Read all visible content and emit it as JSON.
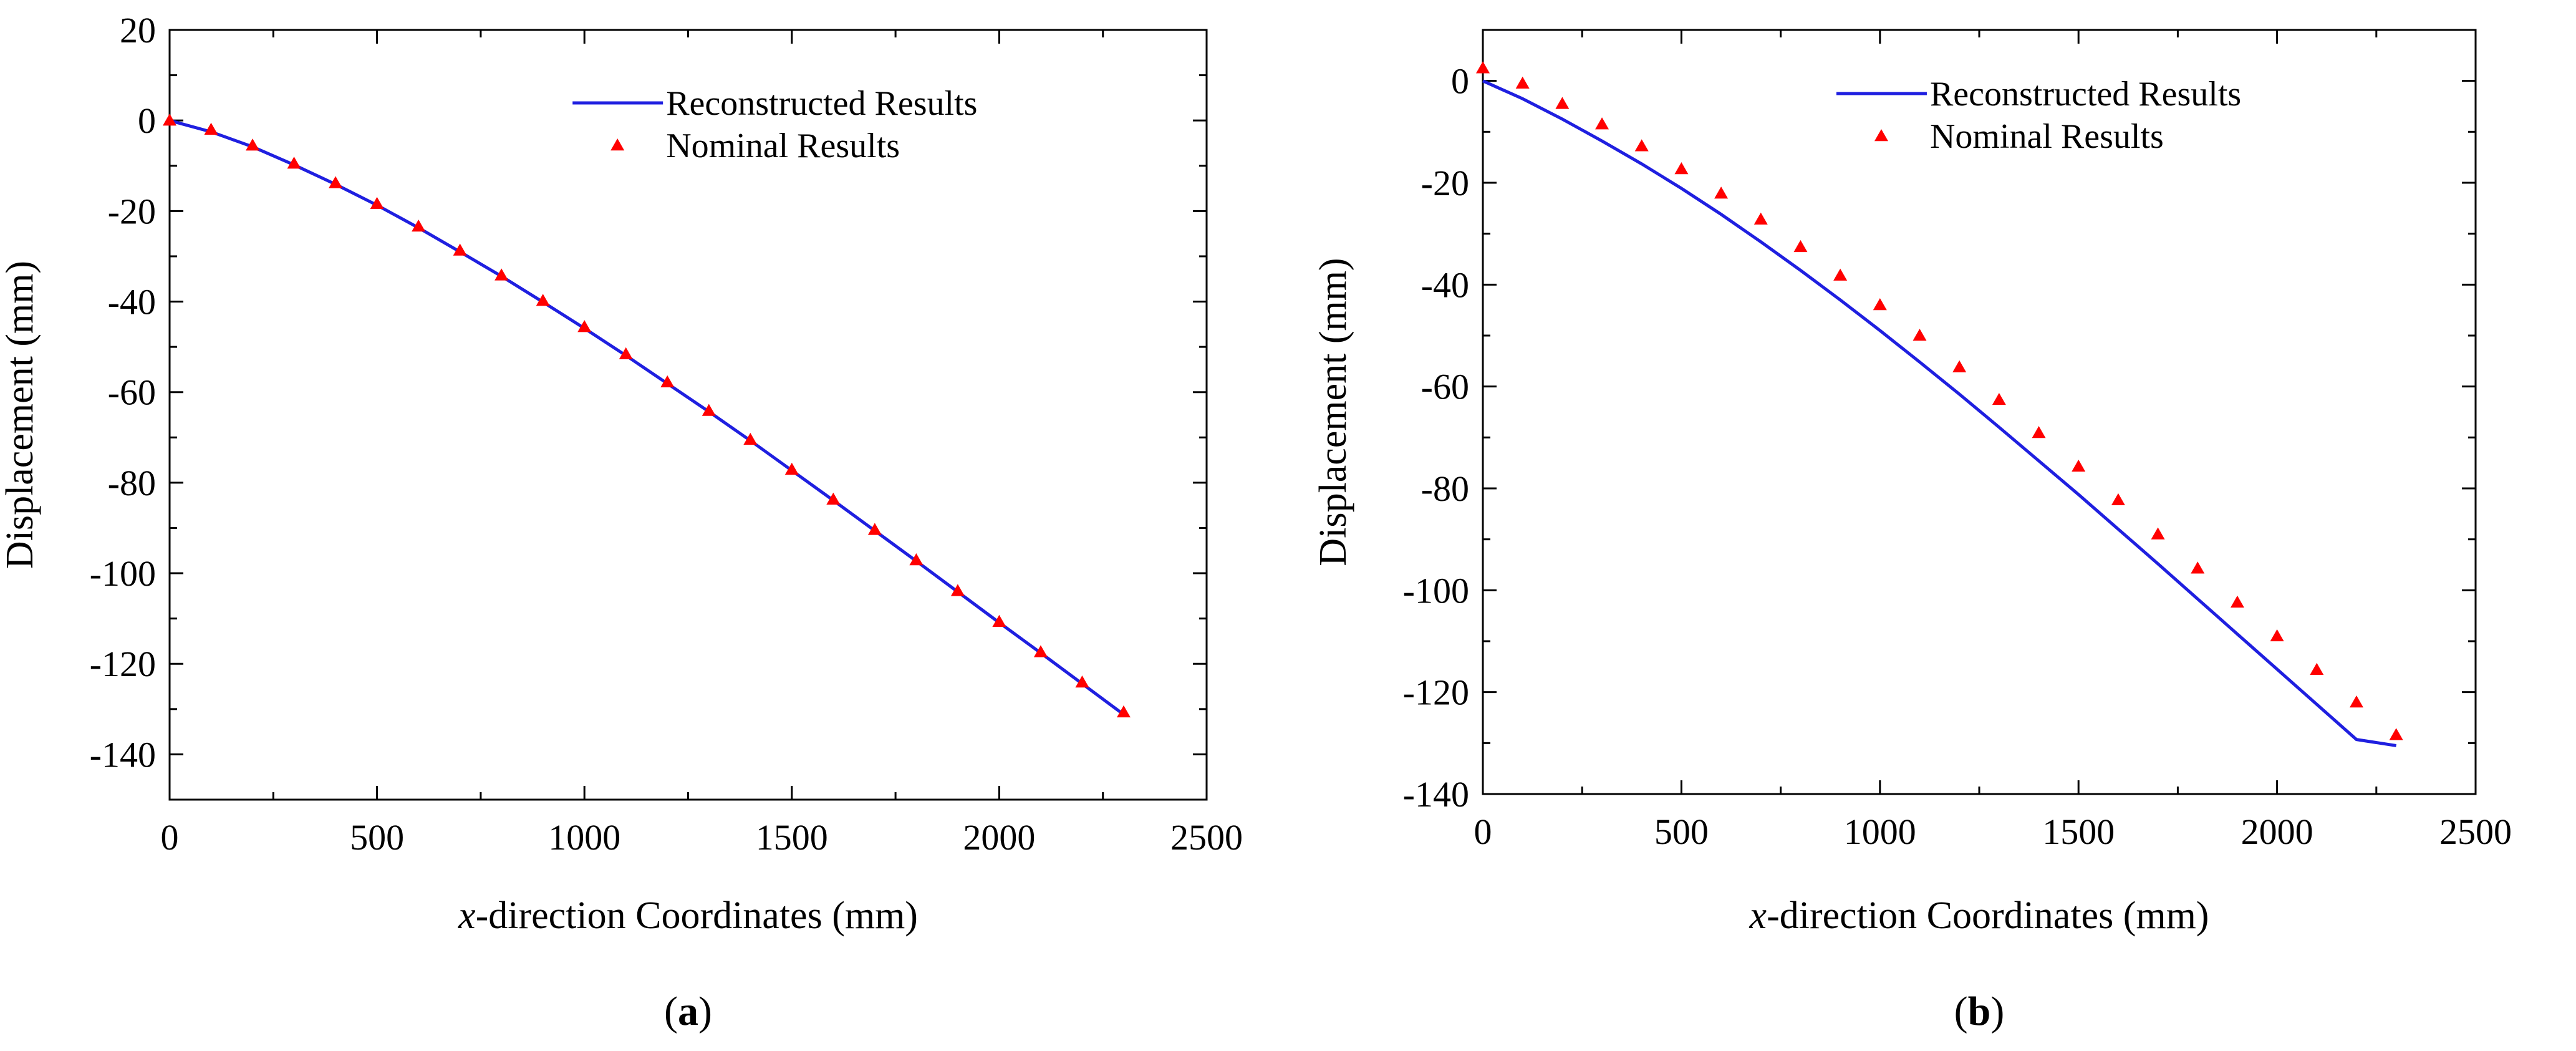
{
  "chart_data": [
    {
      "type": "line",
      "panel_label": "a",
      "title": "",
      "xlabel_italic": "x",
      "xlabel_rest": "-direction Coordinates (mm)",
      "ylabel": "Displacement (mm)",
      "xlim": [
        0,
        2500
      ],
      "ylim": [
        -150,
        20
      ],
      "xticks": [
        0,
        500,
        1000,
        1500,
        2000,
        2500
      ],
      "yticks": [
        20,
        0,
        -20,
        -40,
        -60,
        -80,
        -100,
        -120,
        -140
      ],
      "legend_position": "top-center",
      "series": [
        {
          "name": "Reconstructed Results",
          "style": "line",
          "color": "#1f1fe0",
          "x": [
            0,
            100,
            200,
            300,
            400,
            500,
            600,
            700,
            800,
            900,
            1000,
            1100,
            1200,
            1300,
            1400,
            1500,
            1600,
            1700,
            1800,
            1900,
            2000,
            2100,
            2200,
            2300
          ],
          "y": [
            0,
            -2.5,
            -5.8,
            -9.8,
            -14.1,
            -18.7,
            -23.7,
            -29.0,
            -34.4,
            -40.1,
            -45.9,
            -51.9,
            -58.1,
            -64.3,
            -70.7,
            -77.3,
            -83.9,
            -90.6,
            -97.3,
            -104.1,
            -110.9,
            -117.6,
            -124.4,
            -131.2
          ]
        },
        {
          "name": "Nominal Results",
          "style": "triangle-markers",
          "color": "#ff0000",
          "x": [
            0,
            100,
            200,
            300,
            400,
            500,
            600,
            700,
            800,
            900,
            1000,
            1100,
            1200,
            1300,
            1400,
            1500,
            1600,
            1700,
            1800,
            1900,
            2000,
            2100,
            2200,
            2300
          ],
          "y": [
            0,
            -2.0,
            -5.5,
            -9.5,
            -13.8,
            -18.4,
            -23.4,
            -28.7,
            -34.2,
            -39.8,
            -45.6,
            -51.6,
            -57.8,
            -64.1,
            -70.5,
            -77.1,
            -83.7,
            -90.4,
            -97.1,
            -103.9,
            -110.7,
            -117.4,
            -124.1,
            -130.7
          ]
        }
      ]
    },
    {
      "type": "line",
      "panel_label": "b",
      "title": "",
      "xlabel_italic": "x",
      "xlabel_rest": "-direction Coordinates (mm)",
      "ylabel": "Displacement (mm)",
      "xlim": [
        0,
        2500
      ],
      "ylim": [
        -140,
        10
      ],
      "xticks": [
        0,
        500,
        1000,
        1500,
        2000,
        2500
      ],
      "yticks": [
        0,
        -20,
        -40,
        -60,
        -80,
        -100,
        -120,
        -140
      ],
      "legend_position": "top-center",
      "series": [
        {
          "name": "Reconstructed Results",
          "style": "line",
          "color": "#1f1fe0",
          "x": [
            0,
            100,
            200,
            300,
            400,
            500,
            600,
            700,
            800,
            900,
            1000,
            1100,
            1200,
            1300,
            1400,
            1500,
            1600,
            1700,
            1800,
            1900,
            2000,
            2100,
            2200,
            2300
          ],
          "y": [
            0,
            -3.5,
            -7.5,
            -11.8,
            -16.3,
            -21.1,
            -26.2,
            -31.6,
            -37.2,
            -43.0,
            -49.0,
            -55.2,
            -61.5,
            -68.0,
            -74.6,
            -81.2,
            -88.0,
            -94.8,
            -101.7,
            -108.6,
            -115.5,
            -122.4,
            -129.3,
            -130.5
          ]
        },
        {
          "name": "Nominal Results",
          "style": "triangle-markers",
          "color": "#ff0000",
          "x": [
            0,
            100,
            200,
            300,
            400,
            500,
            600,
            700,
            800,
            900,
            1000,
            1100,
            1200,
            1300,
            1400,
            1500,
            1600,
            1700,
            1800,
            1900,
            2000,
            2100,
            2200,
            2300
          ],
          "y": [
            2.5,
            -0.5,
            -4.5,
            -8.5,
            -12.8,
            -17.3,
            -22.1,
            -27.2,
            -32.6,
            -38.2,
            -44.0,
            -50.0,
            -56.2,
            -62.6,
            -69.1,
            -75.7,
            -82.3,
            -89.0,
            -95.7,
            -102.4,
            -109.0,
            -115.6,
            -122.0,
            -128.4
          ]
        }
      ]
    }
  ]
}
